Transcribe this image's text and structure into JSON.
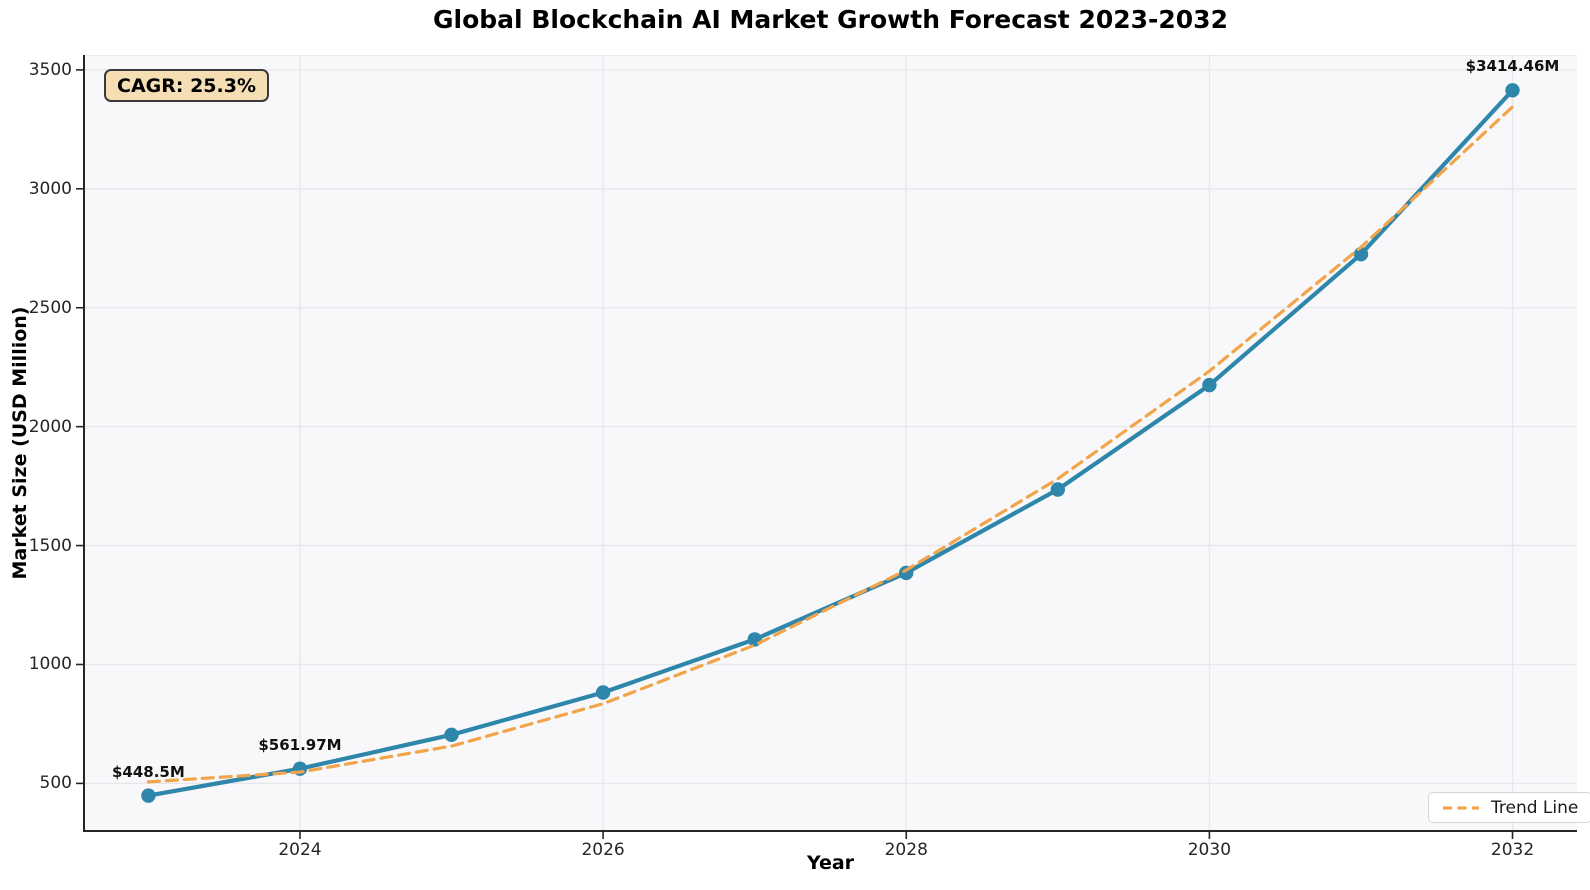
{
  "title": "Global Blockchain AI Market Growth Forecast 2023-2032",
  "annotation": {
    "text": "CAGR: 25.3%",
    "bg_color": "#F5DEB3",
    "border_color": "#3A3A3A"
  },
  "legend": {
    "position": "lower right",
    "items": [
      {
        "label": "Trend Line",
        "color": "#F2A44A",
        "line_style": "dashed"
      }
    ]
  },
  "chart_data": {
    "type": "line",
    "title": "Global Blockchain AI Market Growth Forecast 2023-2032",
    "xlabel": "Year",
    "ylabel": "Market Size (USD Million)",
    "x": [
      2023,
      2024,
      2025,
      2026,
      2027,
      2028,
      2029,
      2030,
      2031,
      2032
    ],
    "series": [
      {
        "name": "Market Size",
        "color": "#2E86AB",
        "line_style": "solid",
        "marker": "circle",
        "values": [
          448.5,
          561.97,
          704.15,
          882.3,
          1105.52,
          1385.22,
          1735.68,
          2174.81,
          2725.03,
          3414.46
        ]
      },
      {
        "name": "Trend Line",
        "color": "#F2A44A",
        "line_style": "dashed",
        "marker": "none",
        "values": [
          506.5,
          547.4,
          656.9,
          835.0,
          1081.7,
          1397.0,
          1780.9,
          2233.5,
          2754.6,
          3344.3
        ]
      }
    ],
    "point_labels": [
      {
        "x": 2023,
        "text": "$448.5M"
      },
      {
        "x": 2024,
        "text": "$561.97M"
      },
      {
        "x": 2032,
        "text": "$3414.46M"
      }
    ],
    "xticks": [
      2024,
      2026,
      2028,
      2030,
      2032
    ],
    "yticks": [
      500,
      1000,
      1500,
      2000,
      2500,
      3000,
      3500
    ],
    "xlim": [
      2022.55,
      2032.45
    ],
    "ylim": [
      300,
      3563
    ],
    "grid": true,
    "cagr_percent": 25.3
  },
  "colors": {
    "figure_bg": "#FFFFFF",
    "plot_bg": "#F8F8FA",
    "grid": "#E7E7EB",
    "spine": "#262626",
    "tick_text": "#262626"
  }
}
